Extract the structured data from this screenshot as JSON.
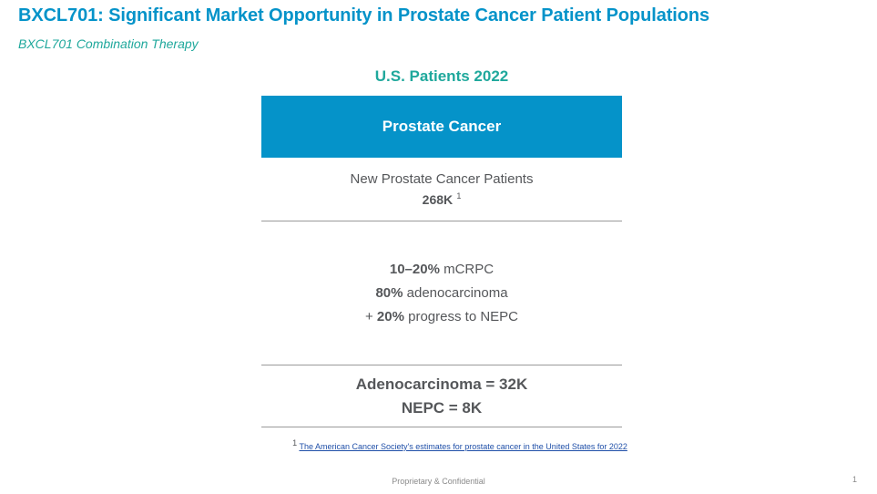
{
  "title": "BXCL701: Significant Market Opportunity in Prostate Cancer Patient Populations",
  "subtitle": "BXCL701 Combination Therapy",
  "section_heading": "U.S. Patients 2022",
  "header_box": "Prostate Cancer",
  "new_patients": {
    "label": "New Prostate Cancer Patients",
    "value": "268K",
    "footnote_ref": "1"
  },
  "breakdown": [
    {
      "bold": "10–20%",
      "prefix": "",
      "text": " mCRPC"
    },
    {
      "bold": "80%",
      "prefix": "",
      "text": " adenocarcinoma"
    },
    {
      "bold": "20%",
      "prefix": "+ ",
      "text": " progress to NEPC"
    }
  ],
  "totals": {
    "adenocarcinoma": "Adenocarcinoma = 32K",
    "nepc": "NEPC = 8K"
  },
  "footnote": {
    "marker": "1",
    "link_text": "The American Cancer Society's estimates for prostate cancer in the United States for 2022"
  },
  "footer": "Proprietary & Confidential",
  "page_number": "1",
  "colors": {
    "title": "#0593c9",
    "accent_teal": "#1fa89c",
    "header_box": "#0593c9"
  }
}
